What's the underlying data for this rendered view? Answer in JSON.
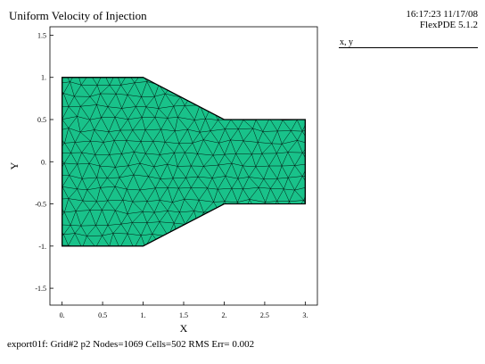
{
  "header": {
    "title": "Uniform Velocity of Injection",
    "time_date": "16:17:23 11/17/08",
    "software": "FlexPDE 5.1.2"
  },
  "legend": {
    "label": "x, y"
  },
  "footer": {
    "status": "export01f:  Grid#2  p2  Nodes=1069 Cells=502 RMS Err= 0.002"
  },
  "colors": {
    "mesh_fill": "#19c28a",
    "mesh_line": "#000000"
  },
  "chart_data": {
    "type": "mesh",
    "xlabel": "X",
    "ylabel": "Y",
    "xlim": [
      -0.15,
      3.15
    ],
    "ylim": [
      -1.7,
      1.6
    ],
    "xticks": [
      0,
      0.5,
      1,
      1.5,
      2,
      2.5,
      3
    ],
    "xtick_labels": [
      "0.",
      "0.5",
      "1.",
      "1.5",
      "2.",
      "2.5",
      "3."
    ],
    "yticks": [
      1.5,
      1,
      0.5,
      0,
      -0.5,
      -1,
      -1.5
    ],
    "ytick_labels": [
      "1.5",
      "1.",
      "0.5",
      "0.",
      "-0.5",
      "-1.",
      "-1.5"
    ],
    "domain_outline": [
      [
        0,
        1
      ],
      [
        1,
        1
      ],
      [
        2,
        0.5
      ],
      [
        3,
        0.5
      ],
      [
        3,
        -0.5
      ],
      [
        2,
        -0.5
      ],
      [
        1,
        -1
      ],
      [
        0,
        -1
      ]
    ],
    "grid_number": 2,
    "nodes": 1069,
    "cells": 502
  }
}
